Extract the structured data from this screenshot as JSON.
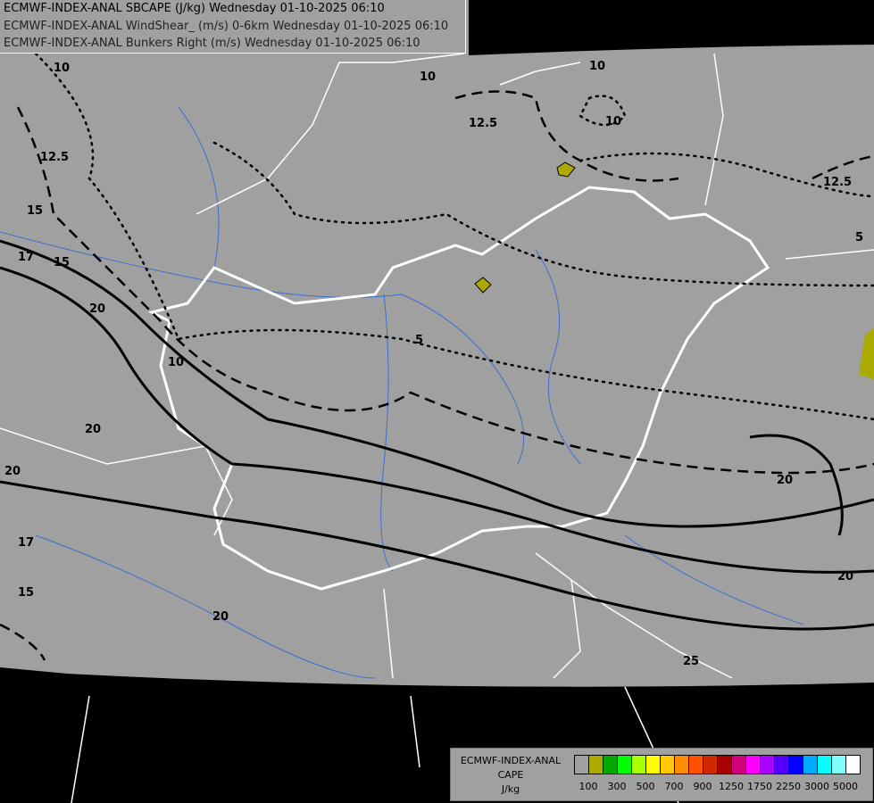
{
  "header": {
    "lines": [
      "ECMWF-INDEX-ANAL SBCAPE (J/kg) Wednesday 01-10-2025 06:10",
      "ECMWF-INDEX-ANAL WindShear_ (m/s) 0-6km Wednesday 01-10-2025 06:10",
      "ECMWF-INDEX-ANAL Bunkers Right (m/s) Wednesday 01-10-2025 06:10"
    ]
  },
  "legend": {
    "title_lines": [
      "ECMWF-INDEX-ANAL",
      "CAPE",
      "J/kg"
    ],
    "colors": [
      "#a0a0a0",
      "#aaaa00",
      "#00aa00",
      "#00ff00",
      "#aaff00",
      "#ffff00",
      "#ffc800",
      "#ff8c00",
      "#ff5000",
      "#d22800",
      "#aa0000",
      "#d2007f",
      "#ff00ff",
      "#aa00ff",
      "#5500ff",
      "#0000ff",
      "#00aaff",
      "#00ffff",
      "#80ffff",
      "#ffffff"
    ],
    "tick_labels": [
      "100",
      "300",
      "500",
      "700",
      "900",
      "1250",
      "1750",
      "2250",
      "3000",
      "5000"
    ]
  },
  "contour_labels": {
    "shear": [
      "10",
      "10",
      "10",
      "12.5",
      "12.5",
      "12.5",
      "15",
      "15",
      "15",
      "17",
      "17",
      "20",
      "20",
      "20",
      "20",
      "20",
      "20",
      "25"
    ],
    "bunkers": [
      "5",
      "5",
      "10",
      "10"
    ]
  },
  "colors": {
    "land": "#a0a0a0",
    "outside": "#000000",
    "borders": "#ffffff",
    "rivers": "#3a6fd0"
  }
}
